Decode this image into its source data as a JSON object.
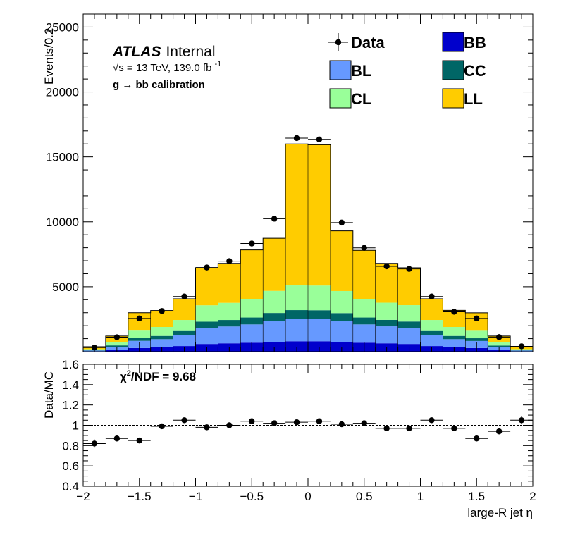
{
  "header": {
    "atlas": "ATLAS",
    "internal": "Internal",
    "energy": "√s = 13 TeV, 139.0 fb",
    "energy_exp": "-1",
    "selection": "g  → bb calibration"
  },
  "legend": [
    {
      "label": "Data",
      "kind": "marker"
    },
    {
      "label": "BB",
      "color": "#0000cc"
    },
    {
      "label": "BL",
      "color": "#6699ff"
    },
    {
      "label": "CC",
      "color": "#006666"
    },
    {
      "label": "CL",
      "color": "#99ff99"
    },
    {
      "label": "LL",
      "color": "#ffcc00"
    }
  ],
  "ratio_annotation": {
    "chi": "χ",
    "sup": "2",
    "rest": "/NDF = 9.68"
  },
  "chart_data": [
    {
      "type": "bar",
      "stacked": true,
      "ylabel": "Events/0.2",
      "xlim": [
        -2,
        2
      ],
      "ylim": [
        0,
        26000
      ],
      "yticks": [
        5000,
        10000,
        15000,
        20000,
        25000
      ],
      "bin_edges": [
        -2.0,
        -1.8,
        -1.6,
        -1.4,
        -1.2,
        -1.0,
        -0.8,
        -0.6,
        -0.4,
        -0.2,
        0.0,
        0.2,
        0.4,
        0.6,
        0.8,
        1.0,
        1.2,
        1.4,
        1.6,
        1.8,
        2.0
      ],
      "series": [
        {
          "name": "BB",
          "color": "#0000cc",
          "values": [
            30,
            110,
            280,
            330,
            430,
            590,
            640,
            690,
            750,
            800,
            800,
            750,
            690,
            640,
            590,
            430,
            330,
            280,
            110,
            30
          ]
        },
        {
          "name": "BL",
          "color": "#6699ff",
          "values": [
            60,
            270,
            550,
            630,
            830,
            1240,
            1300,
            1410,
            1620,
            1720,
            1710,
            1610,
            1410,
            1310,
            1250,
            830,
            630,
            540,
            260,
            60
          ]
        },
        {
          "name": "CC",
          "color": "#006666",
          "values": [
            25,
            100,
            210,
            250,
            330,
            480,
            500,
            530,
            610,
            680,
            680,
            610,
            530,
            500,
            480,
            330,
            250,
            210,
            100,
            25
          ]
        },
        {
          "name": "CL",
          "color": "#99ff99",
          "values": [
            75,
            280,
            580,
            690,
            850,
            1260,
            1320,
            1430,
            1700,
            1900,
            1900,
            1700,
            1430,
            1320,
            1260,
            850,
            690,
            580,
            280,
            75
          ]
        },
        {
          "name": "LL",
          "color": "#ffcc00",
          "values": [
            190,
            440,
            1380,
            1270,
            1630,
            2890,
            3040,
            3780,
            4050,
            10900,
            10850,
            4630,
            3740,
            3030,
            2880,
            1630,
            1280,
            1380,
            450,
            190
          ]
        }
      ],
      "data": {
        "name": "Data",
        "values": [
          310,
          1110,
          2560,
          3130,
          4250,
          6480,
          6970,
          8330,
          10240,
          16450,
          16350,
          9940,
          7990,
          6570,
          6370,
          4250,
          3070,
          2560,
          1120,
          410
        ]
      }
    },
    {
      "type": "scatter",
      "xlabel": "large-R jet η",
      "ylabel": "Data/MC",
      "xlim": [
        -2,
        2
      ],
      "ylim": [
        0.4,
        1.6
      ],
      "xticks": [
        -2,
        -1.5,
        -1,
        -0.5,
        0,
        0.5,
        1,
        1.5,
        2
      ],
      "xtick_labels": [
        "−2",
        "−1.5",
        "−1",
        "−0.5",
        "0",
        "0.5",
        "1",
        "1.5",
        "2"
      ],
      "yticks": [
        0.4,
        0.6,
        0.8,
        1,
        1.2,
        1.4,
        1.6
      ],
      "ytick_labels": [
        "0.4",
        "0.6",
        "0.8",
        "1",
        "1.2",
        "1.4",
        "1.6"
      ],
      "reference_line": 1,
      "x": [
        -1.9,
        -1.7,
        -1.5,
        -1.3,
        -1.1,
        -0.9,
        -0.7,
        -0.5,
        -0.3,
        -0.1,
        0.1,
        0.3,
        0.5,
        0.7,
        0.9,
        1.1,
        1.3,
        1.5,
        1.7,
        1.9
      ],
      "y": [
        0.82,
        0.87,
        0.85,
        0.99,
        1.05,
        0.98,
        1.0,
        1.04,
        1.02,
        1.03,
        1.04,
        1.01,
        1.02,
        0.97,
        0.97,
        1.05,
        0.97,
        0.87,
        0.94,
        1.05
      ],
      "yerr": [
        0.04,
        0.02,
        0.02,
        0.02,
        0.02,
        0.01,
        0.01,
        0.01,
        0.01,
        0.01,
        0.01,
        0.01,
        0.01,
        0.01,
        0.01,
        0.02,
        0.02,
        0.02,
        0.03,
        0.04
      ]
    }
  ]
}
